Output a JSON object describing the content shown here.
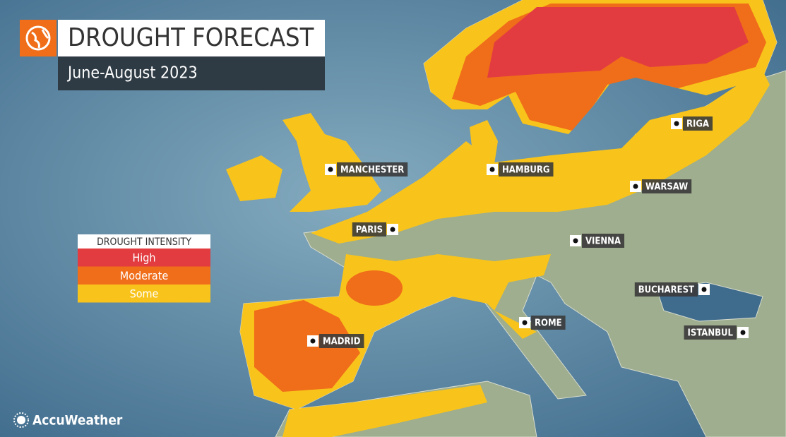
{
  "header": {
    "title": "DROUGHT FORECAST",
    "subtitle": "June-August 2023"
  },
  "legend": {
    "title": "DROUGHT INTENSITY",
    "items": [
      {
        "label": "High",
        "color": "#e23c41"
      },
      {
        "label": "Moderate",
        "color": "#f06d19"
      },
      {
        "label": "Some",
        "color": "#f8c41b"
      }
    ]
  },
  "cities": [
    "MANCHESTER",
    "HAMBURG",
    "RIGA",
    "WARSAW",
    "PARIS",
    "VIENNA",
    "BUCHAREST",
    "ROME",
    "MADRID",
    "ISTANBUL"
  ],
  "brand": "AccuWeather"
}
